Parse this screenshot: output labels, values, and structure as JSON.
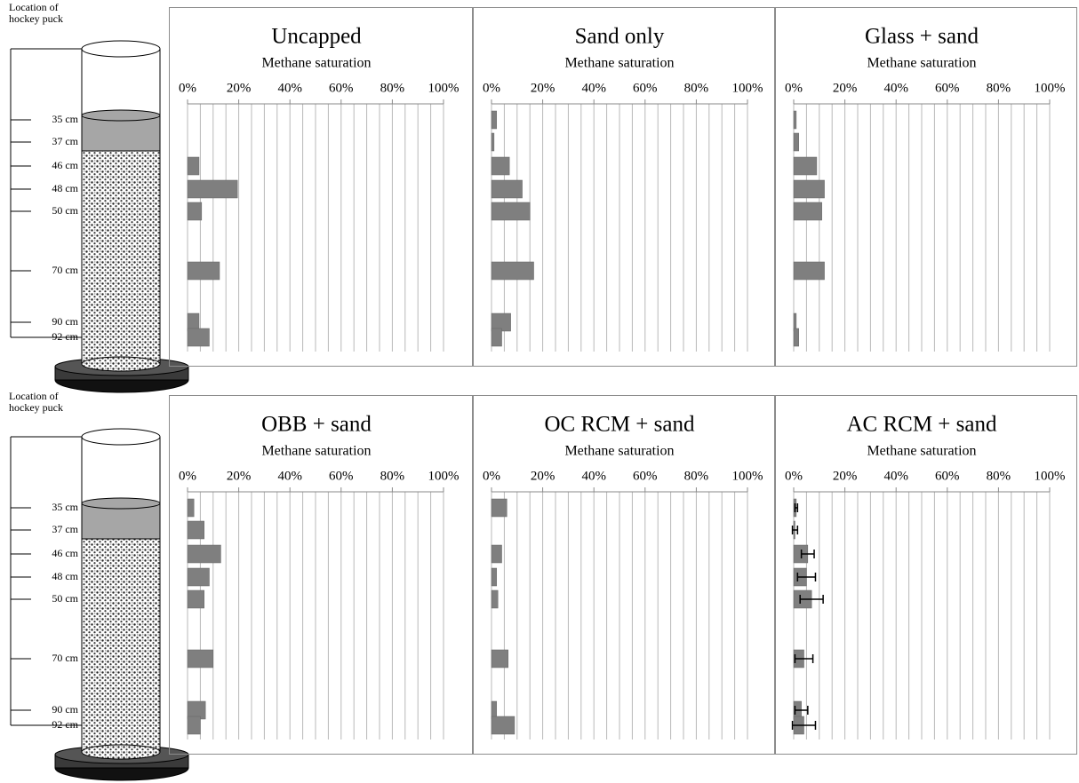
{
  "diagrams": [
    {
      "caption": "Location of hockey puck",
      "depths": [
        "35 cm",
        "37 cm",
        "46 cm",
        "48 cm",
        "50 cm",
        "70 cm",
        "90 cm",
        "92 cm"
      ]
    },
    {
      "caption": "Location of hockey puck",
      "depths": [
        "35 cm",
        "37 cm",
        "46 cm",
        "48 cm",
        "50 cm",
        "70 cm",
        "90 cm",
        "92 cm"
      ]
    }
  ],
  "chart_data": [
    {
      "type": "bar",
      "orientation": "horizontal",
      "title": "Uncapped",
      "xlabel": "Methane saturation",
      "color": "#7f7f7f",
      "values": [
        0,
        0,
        4.5,
        19.5,
        5.5,
        12.5,
        4.5,
        8.5
      ],
      "xlim": [
        0,
        100
      ],
      "xticks": [
        {
          "value": 0,
          "label": "0%"
        },
        {
          "value": 20,
          "label": "20%"
        },
        {
          "value": 40,
          "label": "40%"
        },
        {
          "value": 60,
          "label": "60%"
        },
        {
          "value": 80,
          "label": "80%"
        },
        {
          "value": 100,
          "label": "100%"
        }
      ],
      "xgrid": [
        0,
        5,
        10,
        15,
        20,
        25,
        30,
        35,
        40,
        45,
        50,
        55,
        60,
        65,
        70,
        75,
        80,
        85,
        90,
        95,
        100
      ]
    },
    {
      "type": "bar",
      "orientation": "horizontal",
      "title": "Sand only",
      "xlabel": "Methane saturation",
      "color": "#7f7f7f",
      "values": [
        2,
        1,
        7,
        12,
        15,
        16.5,
        7.5,
        4
      ],
      "xlim": [
        0,
        100
      ],
      "xticks": [
        {
          "value": 0,
          "label": "0%"
        },
        {
          "value": 20,
          "label": "20%"
        },
        {
          "value": 40,
          "label": "40%"
        },
        {
          "value": 60,
          "label": "60%"
        },
        {
          "value": 80,
          "label": "80%"
        },
        {
          "value": 100,
          "label": "100%"
        }
      ],
      "xgrid": [
        0,
        5,
        10,
        15,
        20,
        25,
        30,
        35,
        40,
        45,
        50,
        55,
        60,
        65,
        70,
        75,
        80,
        85,
        90,
        95,
        100
      ]
    },
    {
      "type": "bar",
      "orientation": "horizontal",
      "title": "Glass + sand",
      "xlabel": "Methane saturation",
      "color": "#7f7f7f",
      "values": [
        1,
        2,
        9,
        12,
        11,
        12,
        1,
        2
      ],
      "xlim": [
        0,
        100
      ],
      "xticks": [
        {
          "value": 0,
          "label": "0%"
        },
        {
          "value": 20,
          "label": "20%"
        },
        {
          "value": 40,
          "label": "40%"
        },
        {
          "value": 60,
          "label": "60%"
        },
        {
          "value": 80,
          "label": "80%"
        },
        {
          "value": 100,
          "label": "100%"
        }
      ],
      "xgrid": [
        0,
        5,
        10,
        15,
        20,
        25,
        30,
        35,
        40,
        45,
        50,
        55,
        60,
        65,
        70,
        75,
        80,
        85,
        90,
        95,
        100
      ]
    },
    {
      "type": "bar",
      "orientation": "horizontal",
      "title": "OBB + sand",
      "xlabel": "Methane saturation",
      "color": "#7f7f7f",
      "values": [
        2.5,
        6.5,
        13,
        8.5,
        6.5,
        10,
        7,
        5
      ],
      "xlim": [
        0,
        100
      ],
      "xticks": [
        {
          "value": 0,
          "label": "0%"
        },
        {
          "value": 20,
          "label": "20%"
        },
        {
          "value": 40,
          "label": "40%"
        },
        {
          "value": 60,
          "label": "60%"
        },
        {
          "value": 80,
          "label": "80%"
        },
        {
          "value": 100,
          "label": "100%"
        }
      ],
      "xgrid": [
        0,
        5,
        10,
        15,
        20,
        25,
        30,
        35,
        40,
        45,
        50,
        55,
        60,
        65,
        70,
        75,
        80,
        85,
        90,
        95,
        100
      ]
    },
    {
      "type": "bar",
      "orientation": "horizontal",
      "title": "OC RCM + sand",
      "xlabel": "Methane saturation",
      "color": "#7f7f7f",
      "values": [
        6,
        0,
        4,
        2,
        2.5,
        6.5,
        2,
        9
      ],
      "xlim": [
        0,
        100
      ],
      "xticks": [
        {
          "value": 0,
          "label": "0%"
        },
        {
          "value": 20,
          "label": "20%"
        },
        {
          "value": 40,
          "label": "40%"
        },
        {
          "value": 60,
          "label": "60%"
        },
        {
          "value": 80,
          "label": "80%"
        },
        {
          "value": 100,
          "label": "100%"
        }
      ],
      "xgrid": [
        0,
        5,
        10,
        15,
        20,
        25,
        30,
        35,
        40,
        45,
        50,
        55,
        60,
        65,
        70,
        75,
        80,
        85,
        90,
        95,
        100
      ]
    },
    {
      "type": "bar",
      "orientation": "horizontal",
      "title": "AC RCM + sand",
      "xlabel": "Methane saturation",
      "color": "#7f7f7f",
      "values": [
        1,
        0.5,
        5.5,
        5,
        7,
        4,
        3,
        4
      ],
      "errors": [
        0.5,
        1,
        2.5,
        3.5,
        4.5,
        3.5,
        2.5,
        4.5
      ],
      "xlim": [
        0,
        100
      ],
      "xticks": [
        {
          "value": 0,
          "label": "0%"
        },
        {
          "value": 20,
          "label": "20%"
        },
        {
          "value": 40,
          "label": "40%"
        },
        {
          "value": 60,
          "label": "60%"
        },
        {
          "value": 80,
          "label": "80%"
        },
        {
          "value": 100,
          "label": "100%"
        }
      ],
      "xgrid": [
        0,
        5,
        10,
        15,
        20,
        25,
        30,
        35,
        40,
        45,
        50,
        55,
        60,
        65,
        70,
        75,
        80,
        85,
        90,
        95,
        100
      ]
    }
  ]
}
